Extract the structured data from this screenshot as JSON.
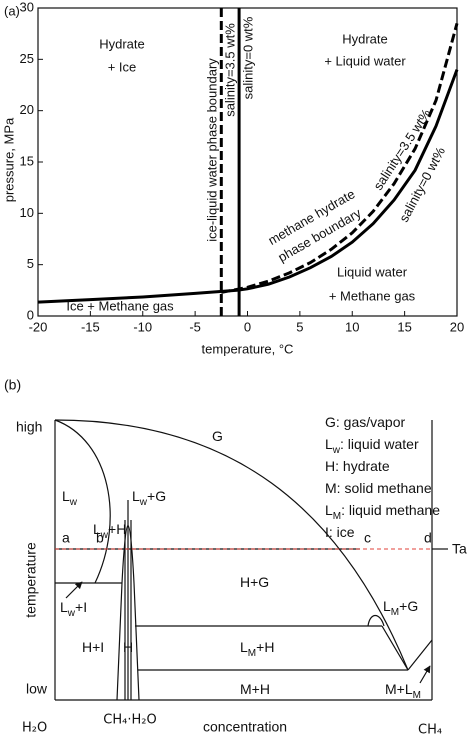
{
  "chart_data": {
    "type": "line",
    "panel_label": "(a)",
    "x_label": "temperature, °C",
    "y_label": "pressure, MPa",
    "xlim": [
      -20,
      20
    ],
    "ylim": [
      0,
      30
    ],
    "xticks": [
      -20,
      -15,
      -10,
      -5,
      0,
      5,
      10,
      15,
      20
    ],
    "yticks": [
      0,
      5,
      10,
      15,
      20,
      25,
      30
    ],
    "series": [
      {
        "color": "#000000",
        "style": "solid",
        "x": [
          -20,
          -15,
          -10,
          -5,
          -1,
          0,
          2,
          4,
          6,
          8,
          10,
          12,
          14,
          16,
          18,
          20
        ],
        "values": [
          1.35,
          1.6,
          1.85,
          2.2,
          2.5,
          2.65,
          3.1,
          3.8,
          4.7,
          5.8,
          7.2,
          9.0,
          11.3,
          14.2,
          18.5,
          24
        ]
      },
      {
        "color": "#000000",
        "style": "dashed",
        "x": [
          -2.5,
          0,
          2,
          4,
          6,
          8,
          10,
          12,
          14,
          16,
          18,
          20
        ],
        "values": [
          2.3,
          2.8,
          3.4,
          4.2,
          5.2,
          6.5,
          8.1,
          10.2,
          12.9,
          16.3,
          21,
          28.5
        ]
      },
      {
        "color": "#000000",
        "style": "solid",
        "x": [
          -0.8,
          -0.8
        ],
        "values": [
          0,
          30
        ]
      },
      {
        "color": "#000000",
        "style": "dashed",
        "x": [
          -2.5,
          -2.5
        ],
        "values": [
          0,
          30
        ]
      }
    ],
    "annotations": [
      "Hydrate",
      "+ Ice",
      "Hydrate",
      "+ Liquid water",
      "salinity=3.5 wt%",
      "salinity=0 wt%",
      "ice-liquid water phase boundary",
      "methane hydrate",
      "phase boundary",
      "salinity=3.5 wt%",
      "salinity=0 wt%",
      "Liquid water",
      "+ Methane gas",
      "Ice + Methane gas"
    ]
  },
  "diagram": {
    "panel_label": "(b)",
    "legend": [
      {
        "text": "G",
        "after": ": gas/vapor"
      },
      {
        "text": "L",
        "sub": "w",
        "after": ": liquid water"
      },
      {
        "text": "H",
        "after": ": hydrate"
      },
      {
        "text": "M",
        "after": ": solid methane"
      },
      {
        "text": "L",
        "sub": "M",
        "after": ": liquid methane"
      },
      {
        "text": "I",
        "after": ": ice"
      }
    ],
    "regions": [
      {
        "text": "G"
      },
      {
        "text": "L",
        "sub": "w"
      },
      {
        "text": "L",
        "sub": "w",
        "after": "+G"
      },
      {
        "text": "L",
        "sub": "w",
        "after": "+H"
      },
      {
        "text": "L",
        "sub": "w",
        "after": "+I"
      },
      {
        "text": "H+G"
      },
      {
        "text": "L",
        "sub": "M",
        "after": "+G"
      },
      {
        "text": "H+I"
      },
      {
        "text": "H"
      },
      {
        "text": "L",
        "sub": "M",
        "after": "+H"
      },
      {
        "text": "M+H"
      },
      {
        "text": "M+L",
        "sub": "M"
      }
    ],
    "points": [
      "a",
      "b",
      "c",
      "d",
      "Ta"
    ],
    "axis": {
      "high": "high",
      "low": "low",
      "y_title": "temperature",
      "x_title": "concentration",
      "left": "H₂O",
      "right": "CH₄",
      "middle": "CH₄·H₂O"
    }
  }
}
